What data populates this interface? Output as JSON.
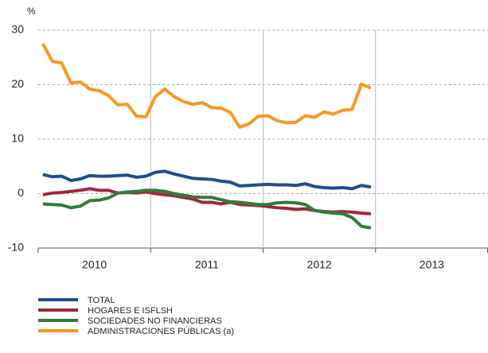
{
  "chart_data": {
    "type": "line",
    "y_label": "%",
    "categories": [
      "2010",
      null,
      null,
      null,
      null,
      null,
      null,
      null,
      null,
      null,
      null,
      null,
      "2011",
      null,
      null,
      null,
      null,
      null,
      null,
      null,
      null,
      null,
      null,
      null,
      "2012",
      null,
      null,
      null,
      null,
      null,
      null,
      null,
      null,
      null,
      null,
      null,
      "2013",
      null,
      null,
      null,
      null,
      null,
      null,
      null,
      null,
      null,
      null,
      null
    ],
    "series": [
      {
        "name": "TOTAL",
        "color": "#1d4f91",
        "values": [
          3.5,
          3.1,
          3.2,
          2.4,
          2.7,
          3.3,
          3.2,
          3.2,
          3.3,
          3.4,
          3.0,
          3.2,
          3.9,
          4.1,
          3.6,
          3.2,
          2.8,
          2.7,
          2.6,
          2.3,
          2.1,
          1.4,
          1.5,
          1.6,
          1.7,
          1.6,
          1.6,
          1.5,
          1.8,
          1.3,
          1.1,
          1.0,
          1.1,
          0.9,
          1.5,
          1.2,
          null,
          null,
          null,
          null,
          null,
          null,
          null,
          null,
          null,
          null,
          null,
          null
        ]
      },
      {
        "name": "HOGARES E ISFLSH",
        "color": "#9e2a3f",
        "values": [
          -0.2,
          0.1,
          0.2,
          0.4,
          0.6,
          0.9,
          0.6,
          0.6,
          0.1,
          0.2,
          0.1,
          0.3,
          0.0,
          -0.2,
          -0.4,
          -0.7,
          -1.0,
          -1.6,
          -1.6,
          -1.9,
          -1.6,
          -2.0,
          -2.1,
          -2.2,
          -2.4,
          -2.6,
          -2.7,
          -2.9,
          -2.8,
          -3.1,
          -3.3,
          -3.4,
          -3.3,
          -3.4,
          -3.6,
          -3.7,
          null,
          null,
          null,
          null,
          null,
          null,
          null,
          null,
          null,
          null,
          null,
          null
        ]
      },
      {
        "name": "SOCIEDADES NO FINANCIERAS",
        "color": "#2e7d3a",
        "values": [
          -1.9,
          -2.0,
          -2.1,
          -2.6,
          -2.3,
          -1.3,
          -1.2,
          -0.8,
          0.1,
          0.3,
          0.4,
          0.6,
          0.6,
          0.4,
          0.0,
          -0.3,
          -0.6,
          -0.7,
          -0.7,
          -1.1,
          -1.5,
          -1.6,
          -1.8,
          -2.0,
          -2.0,
          -1.7,
          -1.6,
          -1.7,
          -2.0,
          -3.1,
          -3.4,
          -3.6,
          -3.7,
          -4.4,
          -6.0,
          -6.3,
          null,
          null,
          null,
          null,
          null,
          null,
          null,
          null,
          null,
          null,
          null,
          null
        ]
      },
      {
        "name": "ADMINISTRACIONES PÚBLICAS (a)",
        "color": "#f39a21",
        "values": [
          27.5,
          24.3,
          24.0,
          20.3,
          20.5,
          19.2,
          18.9,
          18.0,
          16.3,
          16.4,
          14.2,
          14.1,
          17.8,
          19.2,
          17.8,
          16.9,
          16.4,
          16.7,
          15.8,
          15.7,
          14.9,
          12.2,
          12.8,
          14.2,
          14.3,
          13.4,
          13.0,
          13.1,
          14.3,
          14.0,
          15.0,
          14.6,
          15.3,
          15.5,
          20.1,
          19.4,
          null,
          null,
          null,
          null,
          null,
          null,
          null,
          null,
          null,
          null,
          null,
          null
        ]
      }
    ],
    "ylim": [
      -10,
      30
    ],
    "yticks": [
      -10,
      0,
      10,
      20,
      30
    ],
    "grid": "dashed"
  }
}
